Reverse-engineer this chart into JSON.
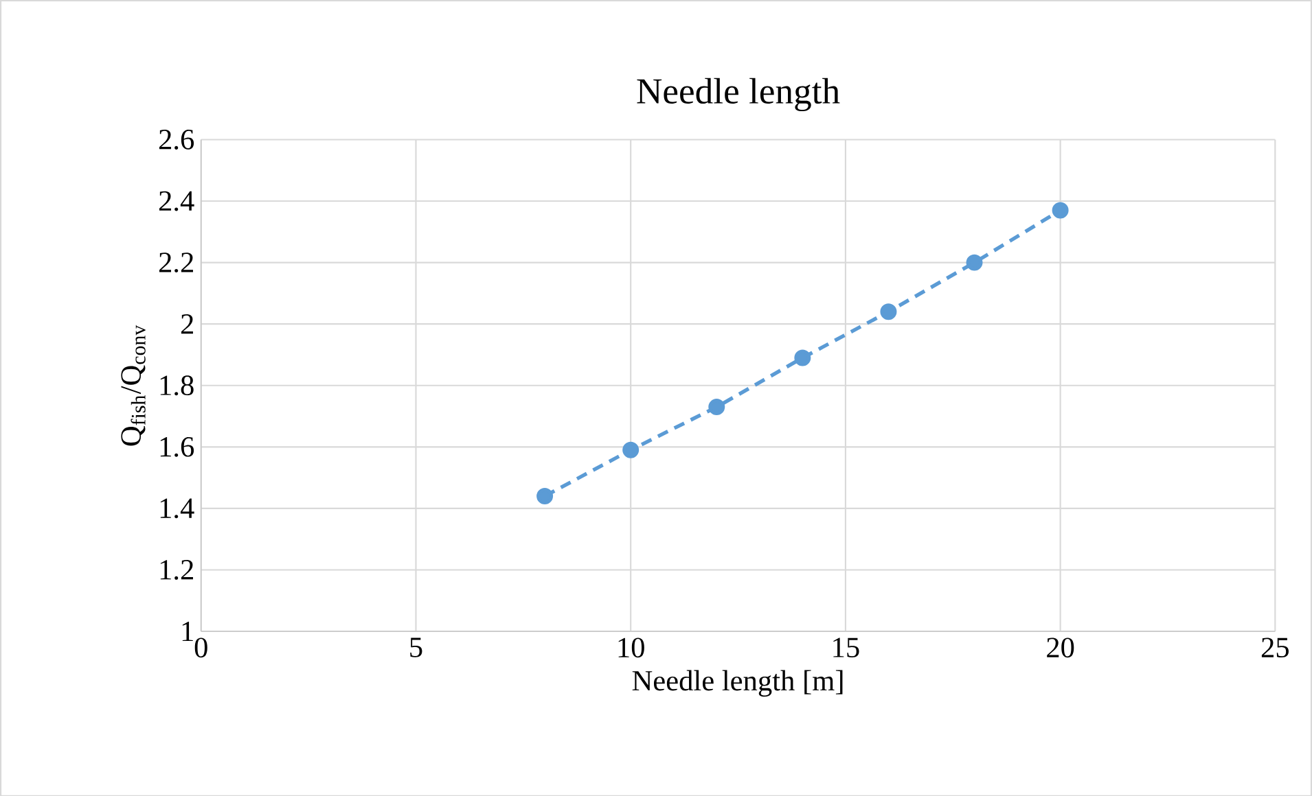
{
  "chart_data": {
    "type": "line",
    "title": "Needle length",
    "xlabel": "Needle length [m]",
    "ylabel": "Q$_{fish}$/Q$_{conv}$",
    "x": [
      8,
      10,
      12,
      14,
      16,
      18,
      20
    ],
    "series": [
      {
        "color": "#5b9bd5",
        "values": [
          1.44,
          1.59,
          1.73,
          1.89,
          2.04,
          2.2,
          2.37
        ]
      }
    ],
    "xlim": [
      0,
      25
    ],
    "xticks": [
      0,
      5,
      10,
      15,
      20,
      25
    ],
    "ylim": [
      1,
      2.6
    ],
    "yticks": [
      1,
      1.2,
      1.4,
      1.6,
      1.8,
      2,
      2.2,
      2.4,
      2.6
    ],
    "grid": true,
    "marker": "circle",
    "line_style": "dashed"
  }
}
